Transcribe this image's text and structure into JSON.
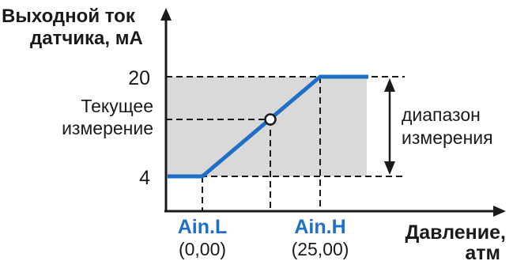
{
  "diagram": {
    "y_title_line1": "Выходной ток",
    "y_title_line2": "датчика, мА",
    "x_title_line1": "Давление,",
    "x_title_line2": "атм",
    "y_tick_high": "20",
    "y_tick_low": "4",
    "current_label_line1": "Текущее",
    "current_label_line2": "измерение",
    "range_label_line1": "диапазон",
    "range_label_line2": "измерения",
    "ain_l_label": "Ain.L",
    "ain_l_value": "(0,00)",
    "ain_h_label": "Ain.H",
    "ain_h_value": "(25,00)",
    "colors": {
      "line": "#1f6fc6",
      "shade": "#d9d9d9",
      "axis": "#1a1a1a"
    }
  }
}
